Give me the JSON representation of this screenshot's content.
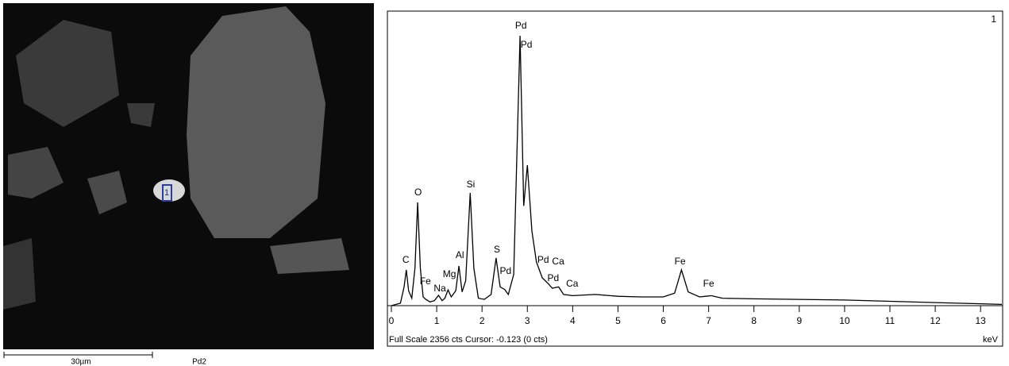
{
  "image": {
    "point_label": "1",
    "scale_bar": "30µm",
    "sample": "Pd2"
  },
  "chart_data": {
    "type": "line",
    "corner_label": "1",
    "xlabel": "keV",
    "footer": "Full Scale 2356 cts Cursor: -0.123  (0 cts)",
    "xlim": [
      0,
      13.47
    ],
    "ylim": [
      0,
      2356
    ],
    "xticks": [
      0,
      1,
      2,
      3,
      4,
      5,
      6,
      7,
      8,
      9,
      10,
      11,
      12,
      13
    ],
    "series": [
      {
        "color": "#000000",
        "x": [
          0.0,
          0.2,
          0.28,
          0.33,
          0.38,
          0.45,
          0.52,
          0.58,
          0.64,
          0.7,
          0.76,
          0.85,
          0.95,
          1.04,
          1.12,
          1.18,
          1.25,
          1.32,
          1.42,
          1.49,
          1.56,
          1.64,
          1.74,
          1.82,
          1.92,
          2.05,
          2.2,
          2.31,
          2.4,
          2.5,
          2.58,
          2.7,
          2.84,
          2.92,
          3.0,
          3.1,
          3.2,
          3.33,
          3.45,
          3.55,
          3.69,
          3.8,
          4.0,
          4.5,
          5.0,
          5.5,
          6.0,
          6.25,
          6.4,
          6.55,
          6.8,
          7.06,
          7.3,
          8,
          9,
          10,
          11,
          12,
          13,
          13.47
        ],
        "values": [
          0,
          20,
          150,
          287,
          120,
          60,
          300,
          828,
          300,
          70,
          50,
          30,
          40,
          83,
          40,
          60,
          127,
          70,
          120,
          318,
          110,
          200,
          904,
          300,
          60,
          50,
          90,
          382,
          150,
          130,
          90,
          250,
          2165,
          800,
          1127,
          600,
          350,
          223,
          180,
          140,
          150,
          90,
          80,
          90,
          75,
          70,
          70,
          100,
          287,
          110,
          70,
          80,
          60,
          55,
          50,
          45,
          35,
          25,
          15,
          10
        ]
      }
    ],
    "annotations": [
      {
        "text": "Pd",
        "x": 2.86,
        "y": 2242
      },
      {
        "text": "Pd",
        "x": 2.98,
        "y": 2089
      },
      {
        "text": "Si",
        "x": 1.75,
        "y": 968
      },
      {
        "text": "O",
        "x": 0.59,
        "y": 905
      },
      {
        "text": "C",
        "x": 0.32,
        "y": 363
      },
      {
        "text": "Fe",
        "x": 0.75,
        "y": 191
      },
      {
        "text": "Na",
        "x": 1.07,
        "y": 134
      },
      {
        "text": "Mg",
        "x": 1.28,
        "y": 248
      },
      {
        "text": "Al",
        "x": 1.51,
        "y": 401
      },
      {
        "text": "S",
        "x": 2.33,
        "y": 446
      },
      {
        "text": "Pd",
        "x": 2.52,
        "y": 274
      },
      {
        "text": "Pd",
        "x": 3.35,
        "y": 363
      },
      {
        "text": "Ca",
        "x": 3.68,
        "y": 350
      },
      {
        "text": "Pd",
        "x": 3.57,
        "y": 217
      },
      {
        "text": "Ca",
        "x": 3.99,
        "y": 172
      },
      {
        "text": "Fe",
        "x": 6.37,
        "y": 350
      },
      {
        "text": "Fe",
        "x": 7.0,
        "y": 172
      }
    ]
  }
}
